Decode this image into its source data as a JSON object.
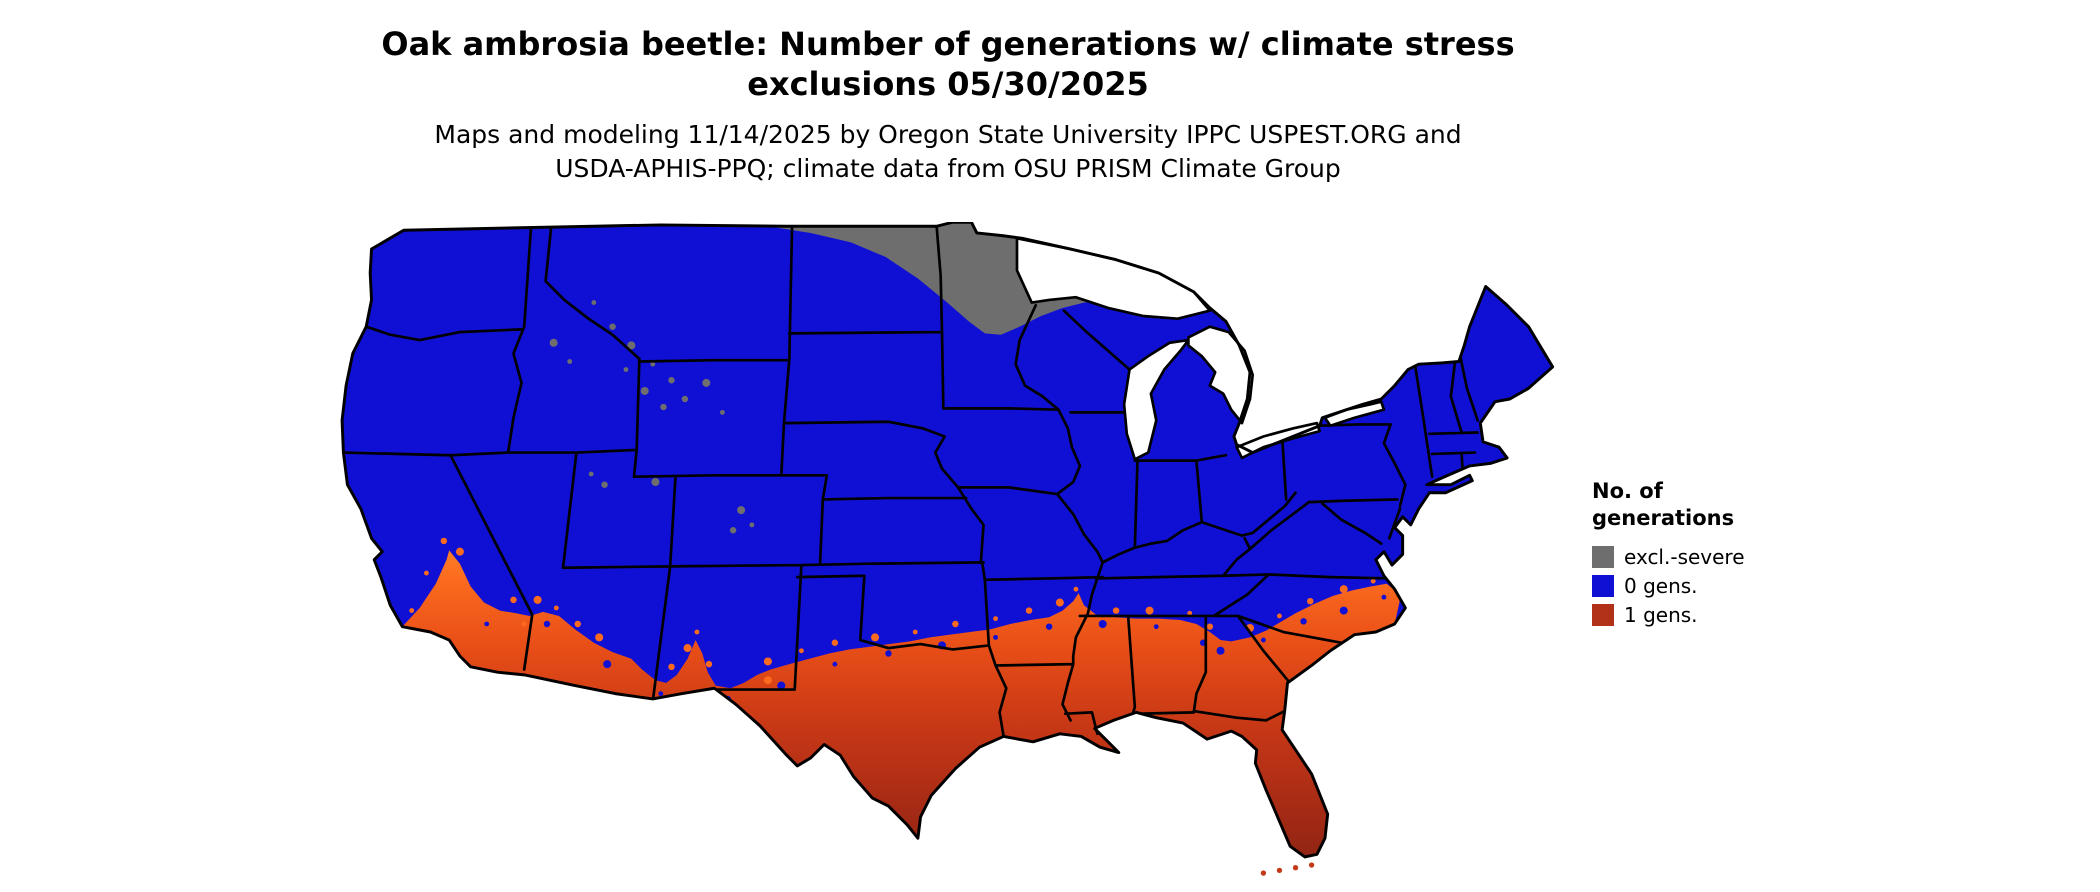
{
  "title": {
    "line1": "Oak ambrosia beetle: Number of generations w/ climate stress",
    "line2": "exclusions 05/30/2025"
  },
  "subtitle": {
    "line1": "Maps and modeling 11/14/2025 by Oregon State University IPPC USPEST.ORG and",
    "line2": "USDA-APHIS-PPQ; climate data from OSU PRISM Climate Group"
  },
  "legend": {
    "title_line1": "No. of",
    "title_line2": "generations",
    "items": [
      {
        "label": "excl.-severe",
        "color": "#6e6e6e"
      },
      {
        "label": "0 gens.",
        "color": "#1010d5"
      },
      {
        "label": "1 gens.",
        "color": "#b13218"
      }
    ]
  },
  "map": {
    "description": "Contiguous United States choropleth of oak ambrosia beetle generations",
    "colors": {
      "zero_generations_blue": "#1010d5",
      "one_generation_red_dark": "#8f2413",
      "one_generation_orange": "#fb6a1e",
      "excluded_severe_gray": "#6e6e6e",
      "state_border_black": "#000000",
      "water_background": "#ffffff"
    }
  }
}
